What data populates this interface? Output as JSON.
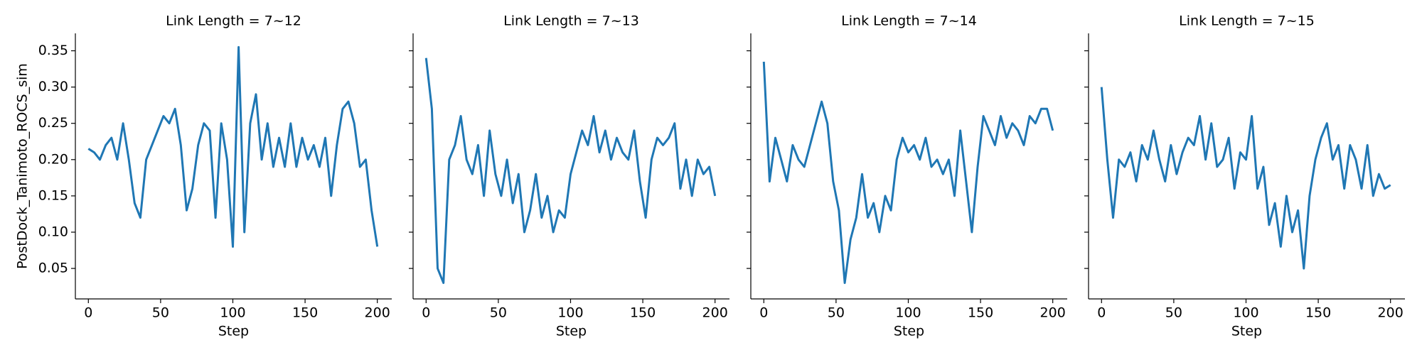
{
  "chart_data": [
    {
      "type": "line",
      "title": "Link Length = 7~12",
      "xlabel": "Step",
      "ylabel": "PostDock_Tanimoto_ROCS_sim",
      "color": "#1f77b4",
      "x": [
        0,
        4,
        8,
        12,
        16,
        20,
        24,
        28,
        32,
        36,
        40,
        44,
        48,
        52,
        56,
        60,
        64,
        68,
        72,
        76,
        80,
        84,
        88,
        92,
        96,
        100,
        104,
        108,
        112,
        116,
        120,
        124,
        128,
        132,
        136,
        140,
        144,
        148,
        152,
        156,
        160,
        164,
        168,
        172,
        176,
        180,
        184,
        188,
        192,
        196,
        200
      ],
      "values": [
        0.215,
        0.21,
        0.2,
        0.22,
        0.23,
        0.2,
        0.25,
        0.2,
        0.14,
        0.12,
        0.2,
        0.22,
        0.24,
        0.26,
        0.25,
        0.27,
        0.22,
        0.13,
        0.16,
        0.22,
        0.25,
        0.24,
        0.12,
        0.25,
        0.2,
        0.08,
        0.355,
        0.1,
        0.25,
        0.29,
        0.2,
        0.25,
        0.19,
        0.23,
        0.19,
        0.25,
        0.19,
        0.23,
        0.2,
        0.22,
        0.19,
        0.23,
        0.15,
        0.22,
        0.27,
        0.28,
        0.25,
        0.19,
        0.2,
        0.13,
        0.08
      ],
      "xlim": [
        -9,
        210
      ],
      "ylim": [
        0.008,
        0.374
      ],
      "xticks": [
        0,
        50,
        100,
        150,
        200
      ],
      "yticks": [
        0.05,
        {
          "value": 0.1,
          "label": "0.10"
        },
        0.15,
        {
          "value": 0.2,
          "label": "0.20"
        },
        0.25,
        {
          "value": 0.3,
          "label": "0.30"
        },
        0.35
      ]
    },
    {
      "type": "line",
      "title": "Link Length = 7~13",
      "xlabel": "Step",
      "color": "#1f77b4",
      "x": [
        0,
        4,
        8,
        12,
        16,
        20,
        24,
        28,
        32,
        36,
        40,
        44,
        48,
        52,
        56,
        60,
        64,
        68,
        72,
        76,
        80,
        84,
        88,
        92,
        96,
        100,
        104,
        108,
        112,
        116,
        120,
        124,
        128,
        132,
        136,
        140,
        144,
        148,
        152,
        156,
        160,
        164,
        168,
        172,
        176,
        180,
        184,
        188,
        192,
        196,
        200
      ],
      "values": [
        0.34,
        0.27,
        0.05,
        0.03,
        0.2,
        0.22,
        0.26,
        0.2,
        0.18,
        0.22,
        0.15,
        0.24,
        0.18,
        0.15,
        0.2,
        0.14,
        0.18,
        0.1,
        0.13,
        0.18,
        0.12,
        0.15,
        0.1,
        0.13,
        0.12,
        0.18,
        0.21,
        0.24,
        0.22,
        0.26,
        0.21,
        0.24,
        0.2,
        0.23,
        0.21,
        0.2,
        0.24,
        0.17,
        0.12,
        0.2,
        0.23,
        0.22,
        0.23,
        0.25,
        0.16,
        0.2,
        0.15,
        0.2,
        0.18,
        0.19,
        0.15
      ],
      "xlim": [
        -9,
        210
      ],
      "ylim": [
        0.008,
        0.374
      ],
      "xticks": [
        0,
        50,
        100,
        150,
        200
      ]
    },
    {
      "type": "line",
      "title": "Link Length = 7~14",
      "xlabel": "Step",
      "color": "#1f77b4",
      "x": [
        0,
        4,
        8,
        12,
        16,
        20,
        24,
        28,
        32,
        36,
        40,
        44,
        48,
        52,
        56,
        60,
        64,
        68,
        72,
        76,
        80,
        84,
        88,
        92,
        96,
        100,
        104,
        108,
        112,
        116,
        120,
        124,
        128,
        132,
        136,
        140,
        144,
        148,
        152,
        156,
        160,
        164,
        168,
        172,
        176,
        180,
        184,
        188,
        192,
        196,
        200
      ],
      "values": [
        0.335,
        0.17,
        0.23,
        0.2,
        0.17,
        0.22,
        0.2,
        0.19,
        0.22,
        0.25,
        0.28,
        0.25,
        0.17,
        0.13,
        0.03,
        0.09,
        0.12,
        0.18,
        0.12,
        0.14,
        0.1,
        0.15,
        0.13,
        0.2,
        0.23,
        0.21,
        0.22,
        0.2,
        0.23,
        0.19,
        0.2,
        0.18,
        0.2,
        0.15,
        0.24,
        0.17,
        0.1,
        0.19,
        0.26,
        0.24,
        0.22,
        0.26,
        0.23,
        0.25,
        0.24,
        0.22,
        0.26,
        0.25,
        0.27,
        0.27,
        0.24
      ],
      "xlim": [
        -9,
        210
      ],
      "ylim": [
        0.008,
        0.374
      ],
      "xticks": [
        0,
        50,
        100,
        150,
        200
      ]
    },
    {
      "type": "line",
      "title": "Link Length = 7~15",
      "xlabel": "Step",
      "color": "#1f77b4",
      "x": [
        0,
        4,
        8,
        12,
        16,
        20,
        24,
        28,
        32,
        36,
        40,
        44,
        48,
        52,
        56,
        60,
        64,
        68,
        72,
        76,
        80,
        84,
        88,
        92,
        96,
        100,
        104,
        108,
        112,
        116,
        120,
        124,
        128,
        132,
        136,
        140,
        144,
        148,
        152,
        156,
        160,
        164,
        168,
        172,
        176,
        180,
        184,
        188,
        192,
        196,
        200
      ],
      "values": [
        0.3,
        0.2,
        0.12,
        0.2,
        0.19,
        0.21,
        0.17,
        0.22,
        0.2,
        0.24,
        0.2,
        0.17,
        0.22,
        0.18,
        0.21,
        0.23,
        0.22,
        0.26,
        0.2,
        0.25,
        0.19,
        0.2,
        0.23,
        0.16,
        0.21,
        0.2,
        0.26,
        0.16,
        0.19,
        0.11,
        0.14,
        0.08,
        0.15,
        0.1,
        0.13,
        0.05,
        0.15,
        0.2,
        0.23,
        0.25,
        0.2,
        0.22,
        0.16,
        0.22,
        0.2,
        0.16,
        0.22,
        0.15,
        0.18,
        0.16,
        0.165
      ],
      "xlim": [
        -9,
        210
      ],
      "ylim": [
        0.008,
        0.374
      ],
      "xticks": [
        0,
        50,
        100,
        150,
        200
      ]
    }
  ]
}
